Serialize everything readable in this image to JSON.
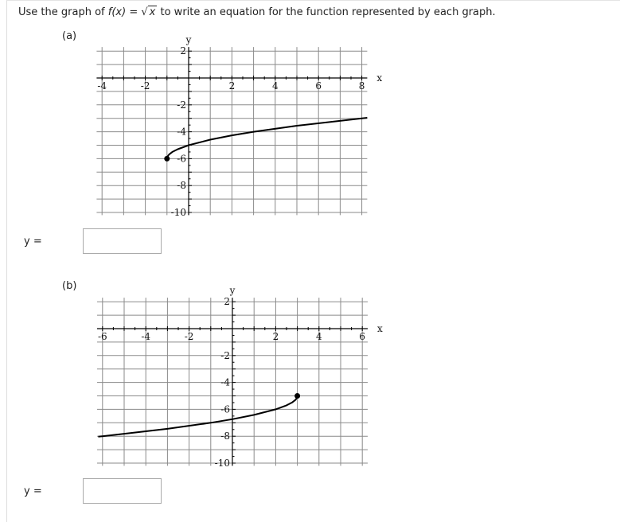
{
  "prompt": {
    "before": "Use the graph of",
    "func": "f(x)",
    "equals": "=",
    "radicand": "x",
    "after": "to write an equation for the function represented by each graph."
  },
  "parts": [
    {
      "label": "(a)",
      "answer_label": "y =",
      "answer_value": "",
      "graph": {
        "xlabel": "x",
        "ylabel": "y",
        "xlim": [
          -4.25,
          8.25
        ],
        "ylim": [
          -10.2,
          2.3
        ],
        "grid": true,
        "xtick_labels": [
          "-4",
          "-2",
          "2",
          "4",
          "6",
          "8"
        ],
        "xticks": [
          -4,
          -2,
          2,
          4,
          6,
          8
        ],
        "ytick_labels": [
          "2",
          "-2",
          "-4",
          "-6",
          "-8",
          "-10"
        ],
        "yticks": [
          2,
          -2,
          -4,
          -6,
          -8,
          -10
        ],
        "endpoint": [
          -1,
          -6
        ],
        "curve": [
          [
            -1,
            -6
          ],
          [
            -0.95,
            -5.776
          ],
          [
            -0.9,
            -5.684
          ],
          [
            -0.75,
            -5.5
          ],
          [
            -0.5,
            -5.293
          ],
          [
            0,
            -5
          ],
          [
            1,
            -4.586
          ],
          [
            2,
            -4.268
          ],
          [
            3,
            -4
          ],
          [
            5,
            -3.551
          ],
          [
            8,
            -3
          ],
          [
            8.25,
            -2.958
          ]
        ]
      }
    },
    {
      "label": "(b)",
      "answer_label": "y =",
      "answer_value": "",
      "graph": {
        "xlabel": "x",
        "ylabel": "y",
        "xlim": [
          -6.25,
          6.25
        ],
        "ylim": [
          -10.2,
          2.3
        ],
        "grid": true,
        "xtick_labels": [
          "-6",
          "-4",
          "-2",
          "2",
          "4",
          "6"
        ],
        "xticks": [
          -6,
          -4,
          -2,
          2,
          4,
          6
        ],
        "ytick_labels": [
          "2",
          "-2",
          "-4",
          "-6",
          "-8",
          "-10"
        ],
        "yticks": [
          2,
          -2,
          -4,
          -6,
          -8,
          -10
        ],
        "endpoint": [
          3,
          -5
        ],
        "curve": [
          [
            3,
            -5
          ],
          [
            2.95,
            -5.224
          ],
          [
            2.9,
            -5.316
          ],
          [
            2.75,
            -5.5
          ],
          [
            2.5,
            -5.707
          ],
          [
            2,
            -6
          ],
          [
            1,
            -6.414
          ],
          [
            0,
            -6.732
          ],
          [
            -1,
            -7
          ],
          [
            -3,
            -7.449
          ],
          [
            -6,
            -8
          ],
          [
            -6.2,
            -8.033
          ]
        ]
      }
    }
  ],
  "colors": {
    "grid": "#8a8a8a",
    "axis": "#000000",
    "curve": "#000000"
  }
}
